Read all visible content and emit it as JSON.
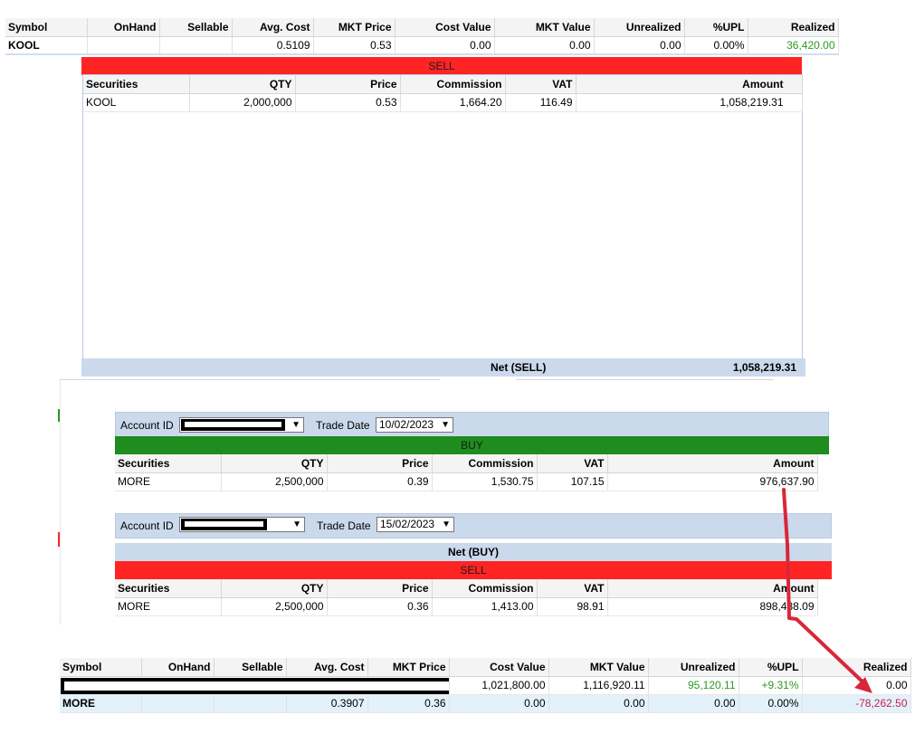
{
  "portfolio_top": {
    "headers": [
      "Symbol",
      "OnHand",
      "Sellable",
      "Avg. Cost",
      "MKT Price",
      "Cost Value",
      "MKT Value",
      "Unrealized",
      "%UPL",
      "Realized"
    ],
    "row": {
      "symbol": "KOOL",
      "onhand": "",
      "sellable": "",
      "avg_cost": "0.5109",
      "mkt_price": "0.53",
      "cost_value": "0.00",
      "mkt_value": "0.00",
      "unrealized": "0.00",
      "upl": "0.00%",
      "realized": "36,420.00"
    }
  },
  "kool_sell": {
    "bar_label": "SELL",
    "headers": [
      "Securities",
      "QTY",
      "Price",
      "Commission",
      "VAT",
      "Amount"
    ],
    "row": {
      "securities": "KOOL",
      "qty": "2,000,000",
      "price": "0.53",
      "commission": "1,664.20",
      "vat": "116.49",
      "amount": "1,058,219.31"
    },
    "net_label": "Net (SELL)",
    "net_value": "1,058,219.31"
  },
  "more_buy": {
    "account_label": "Account ID",
    "trade_date_label": "Trade Date",
    "trade_date": "10/02/2023",
    "bar_label": "BUY",
    "headers": [
      "Securities",
      "QTY",
      "Price",
      "Commission",
      "VAT",
      "Amount"
    ],
    "row": {
      "securities": "MORE",
      "qty": "2,500,000",
      "price": "0.39",
      "commission": "1,530.75",
      "vat": "107.15",
      "amount": "976,637.90"
    }
  },
  "more_sell": {
    "account_label": "Account ID",
    "trade_date_label": "Trade Date",
    "trade_date": "15/02/2023",
    "net_buy_label": "Net (BUY)",
    "bar_label": "SELL",
    "headers": [
      "Securities",
      "QTY",
      "Price",
      "Commission",
      "VAT",
      "Amount"
    ],
    "row": {
      "securities": "MORE",
      "qty": "2,500,000",
      "price": "0.36",
      "commission": "1,413.00",
      "vat": "98.91",
      "amount": "898,488.09"
    }
  },
  "portfolio_bottom": {
    "headers": [
      "Symbol",
      "OnHand",
      "Sellable",
      "Avg. Cost",
      "MKT Price",
      "Cost Value",
      "MKT Value",
      "Unrealized",
      "%UPL",
      "Realized"
    ],
    "row1": {
      "cost_value": "1,021,800.00",
      "mkt_value": "1,116,920.11",
      "unrealized": "95,120.11",
      "upl": "+9.31%",
      "realized": "0.00"
    },
    "row2": {
      "symbol": "MORE",
      "onhand": "",
      "sellable": "",
      "avg_cost": "0.3907",
      "mkt_price": "0.36",
      "cost_value": "0.00",
      "mkt_value": "0.00",
      "unrealized": "0.00",
      "upl": "0.00%",
      "realized": "-78,262.50"
    }
  },
  "colors": {
    "sell": "#ff2424",
    "buy": "#1e8c1e",
    "positive": "#2a9a1e",
    "negative": "#c8234b",
    "panel": "#cbd9ec",
    "annotation": "#d9263a"
  },
  "icons": {
    "dropdown": "chevron-down-icon",
    "annotation": "red-arrow-icon"
  }
}
